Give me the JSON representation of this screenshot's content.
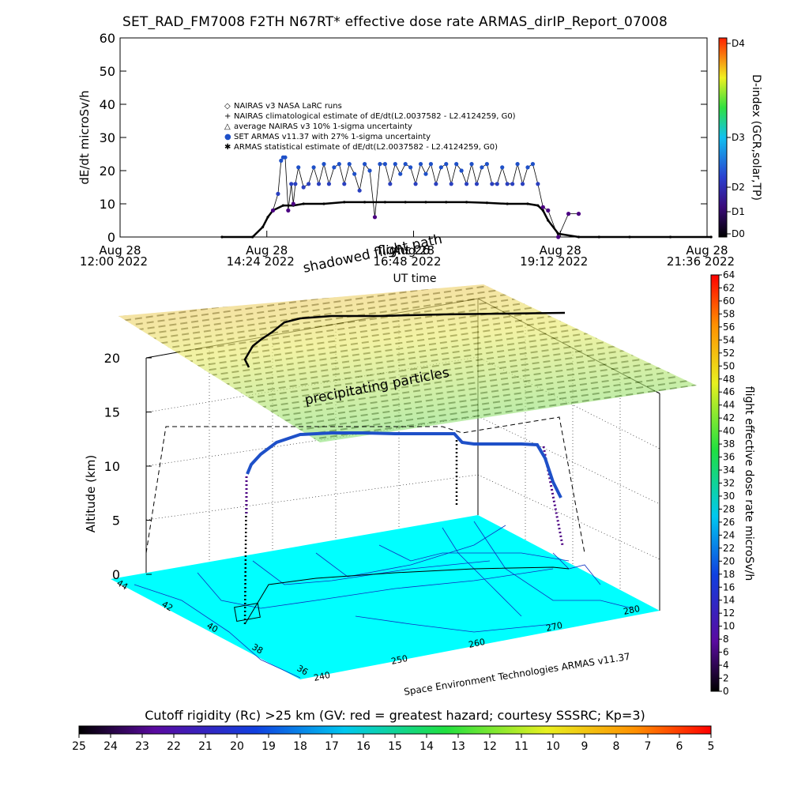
{
  "page": {
    "title": "SET_RAD_FM7008  F2TH N67RT* effective dose rate ARMAS_dirIP_Report_07008",
    "bottom_title": "Cutoff rigidity (Rc) >25 km (GV: red = greatest hazard; courtesy SSSRC; Kp=3)"
  },
  "chart_data": [
    {
      "type": "scatter",
      "name_panel": "time-series",
      "ylabel": "dE/dt microSv/h",
      "xlabel": "UT time",
      "ylim": [
        0,
        60
      ],
      "yticks": [
        0,
        10,
        20,
        30,
        40,
        50,
        60
      ],
      "xticks": [
        {
          "t": 0,
          "line1": "Aug 28",
          "line2": "12:00 2022"
        },
        {
          "t": 144,
          "line1": "Aug 28",
          "line2": "14:24 2022"
        },
        {
          "t": 288,
          "line1": "Aug 28",
          "line2": "16:48 2022"
        },
        {
          "t": 432,
          "line1": "Aug 28",
          "line2": "19:12 2022"
        },
        {
          "t": 576,
          "line1": "Aug 28",
          "line2": "21:36 2022"
        }
      ],
      "xlim": [
        0,
        576
      ],
      "legend": [
        {
          "symbol": "◇",
          "label": "NAIRAS v3 NASA LaRC runs"
        },
        {
          "symbol": "+",
          "label": "NAIRAS climatological estimate of dE/dt(L2.0037582 - L2.4124259, G0)"
        },
        {
          "symbol": "△",
          "label": "average NAIRAS v3 10% 1-sigma uncertainty"
        },
        {
          "symbol": "●",
          "label": "SET ARMAS v11.37 with 27% 1-sigma uncertainty"
        },
        {
          "symbol": "✱",
          "label": "ARMAS statistical estimate of dE/dt(L2.0037582 - L2.4124259, G0)"
        }
      ],
      "annotations": [
        "shadowed flight path",
        "flight 26"
      ],
      "series": [
        {
          "name": "NAIRAS climatological estimate",
          "x": [
            100,
            130,
            140,
            145,
            150,
            160,
            170,
            180,
            200,
            220,
            240,
            260,
            280,
            300,
            320,
            340,
            360,
            380,
            400,
            410,
            415,
            420,
            430,
            450,
            470,
            500,
            540,
            580
          ],
          "y": [
            0,
            0,
            3,
            6,
            8,
            9.5,
            9.5,
            10,
            10,
            10.5,
            10.5,
            10.5,
            10.5,
            10.5,
            10.5,
            10.5,
            10.3,
            10,
            10,
            9.5,
            8,
            5,
            1,
            0,
            0,
            0,
            0,
            0
          ]
        },
        {
          "name": "SET ARMAS v11.37",
          "x": [
            150,
            155,
            158,
            160,
            162,
            165,
            168,
            170,
            172,
            175,
            180,
            185,
            190,
            195,
            200,
            205,
            210,
            215,
            220,
            225,
            230,
            235,
            240,
            245,
            250,
            255,
            260,
            265,
            270,
            275,
            280,
            285,
            290,
            295,
            300,
            305,
            310,
            315,
            320,
            325,
            330,
            335,
            340,
            345,
            350,
            355,
            360,
            365,
            370,
            375,
            380,
            385,
            390,
            395,
            400,
            405,
            410,
            415,
            420,
            430,
            440,
            450
          ],
          "y": [
            8,
            13,
            23,
            24,
            24,
            8,
            16,
            10,
            16,
            21,
            15,
            16,
            21,
            16,
            22,
            16,
            21,
            22,
            16,
            22,
            19,
            14,
            22,
            20,
            6,
            22,
            22,
            16,
            22,
            19,
            22,
            21,
            16,
            22,
            19,
            22,
            16,
            21,
            22,
            16,
            22,
            20,
            16,
            22,
            16,
            21,
            22,
            16,
            16,
            21,
            16,
            16,
            22,
            16,
            21,
            22,
            16,
            9,
            8,
            0,
            7,
            7
          ]
        }
      ]
    },
    {
      "type": "scatter",
      "name_panel": "3d-flight",
      "zlabel": "Altitude (km)",
      "zticks": [
        0,
        5,
        10,
        15,
        20
      ],
      "lat_ticks": [
        44,
        42,
        40,
        38,
        36
      ],
      "lon_ticks": [
        240,
        250,
        260,
        270,
        280
      ],
      "plane_label": "precipitating particles",
      "credit": "Space Environment Technologies ARMAS v11.37"
    }
  ],
  "colorbars": {
    "right": {
      "label": "flight effective dose rate microSv/h",
      "ticks": [
        0,
        2,
        4,
        6,
        8,
        10,
        12,
        14,
        16,
        18,
        20,
        22,
        24,
        26,
        28,
        30,
        32,
        34,
        36,
        38,
        40,
        42,
        44,
        46,
        48,
        50,
        52,
        54,
        56,
        58,
        60,
        62,
        64
      ]
    },
    "top_right": {
      "label": "D-index (GCR,solar,TP)",
      "ticks": [
        "D0",
        "D1",
        "D2",
        "D3",
        "D4"
      ]
    },
    "bottom": {
      "ticks": [
        25,
        24,
        23,
        22,
        21,
        20,
        19,
        18,
        17,
        16,
        15,
        14,
        13,
        12,
        11,
        10,
        9,
        8,
        7,
        6,
        5
      ]
    }
  },
  "colors": {
    "cyan_map": "#00ffff",
    "armas_blue": "#1e50c8",
    "purple": "#4b0082"
  }
}
